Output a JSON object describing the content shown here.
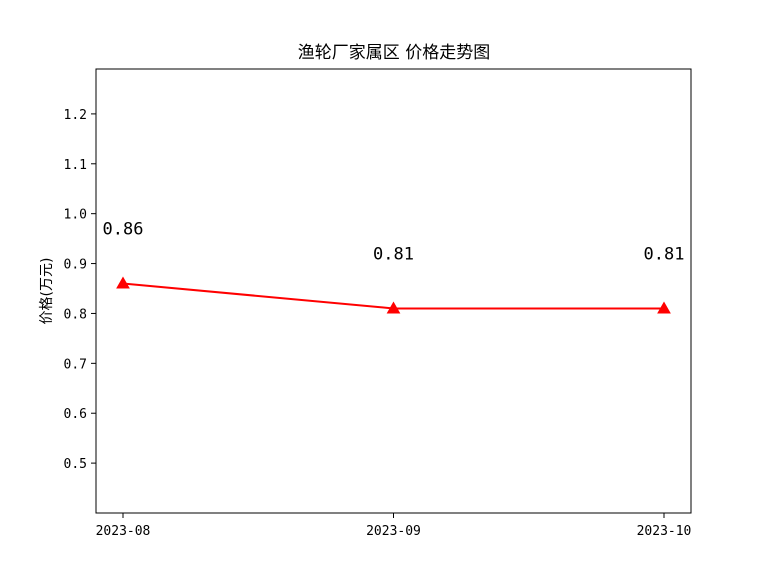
{
  "chart_data": {
    "type": "line",
    "title": "渔轮厂家属区 价格走势图",
    "xlabel": "",
    "ylabel": "价格(万元)",
    "categories": [
      "2023-08",
      "2023-09",
      "2023-10"
    ],
    "series": [
      {
        "values": [
          0.86,
          0.81,
          0.81
        ],
        "data_labels": [
          "0.86",
          "0.81",
          "0.81"
        ],
        "color": "#ff0000",
        "marker": "triangle"
      }
    ],
    "ylim": [
      0.4,
      1.29
    ],
    "yticks": [
      0.5,
      0.6,
      0.7,
      0.8,
      0.9,
      1.0,
      1.1,
      1.2
    ],
    "ytick_labels": [
      "0.5",
      "0.6",
      "0.7",
      "0.8",
      "0.9",
      "1.0",
      "1.1",
      "1.2"
    ],
    "grid": false,
    "legend": "none"
  }
}
